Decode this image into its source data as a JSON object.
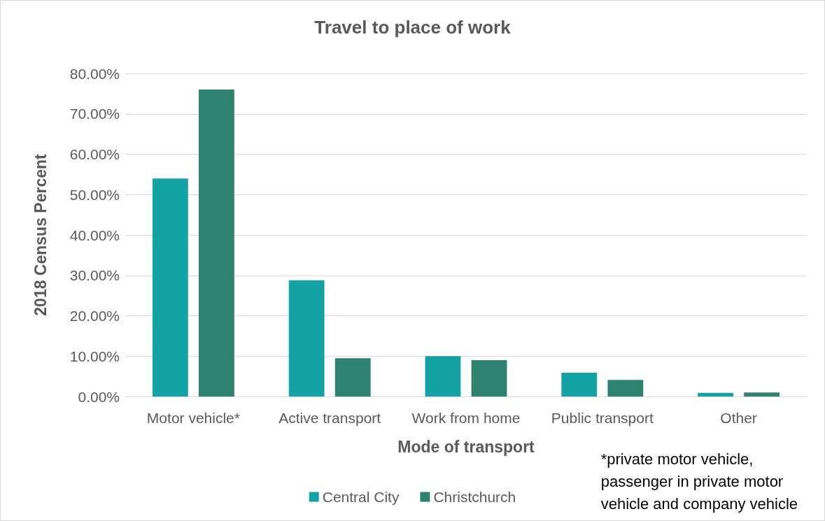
{
  "chart_data": {
    "type": "bar",
    "title": "Travel to place of work",
    "xlabel": "Mode of transport",
    "ylabel": "2018 Census Percent",
    "categories": [
      "Motor vehicle*",
      "Active transport",
      "Work from home",
      "Public transport",
      "Other"
    ],
    "series": [
      {
        "name": "Central City",
        "color": "#14a3a5",
        "values": [
          54.0,
          28.8,
          10.0,
          5.9,
          0.9
        ]
      },
      {
        "name": "Christchurch",
        "color": "#2e8270",
        "values": [
          76.0,
          9.5,
          9.0,
          4.1,
          1.0
        ]
      }
    ],
    "ylim": [
      0,
      80
    ],
    "yticks": [
      {
        "value": 0,
        "label": "0.00%"
      },
      {
        "value": 10,
        "label": "10.00%"
      },
      {
        "value": 20,
        "label": "20.00%"
      },
      {
        "value": 30,
        "label": "30.00%"
      },
      {
        "value": 40,
        "label": "40.00%"
      },
      {
        "value": 50,
        "label": "50.00%"
      },
      {
        "value": 60,
        "label": "60.00%"
      },
      {
        "value": 70,
        "label": "70.00%"
      },
      {
        "value": 80,
        "label": "80.00%"
      }
    ],
    "grid": "y",
    "legend": "bottom",
    "annotations": [
      "*private motor vehicle,\npassenger in private motor\nvehicle and company vehicle"
    ]
  }
}
